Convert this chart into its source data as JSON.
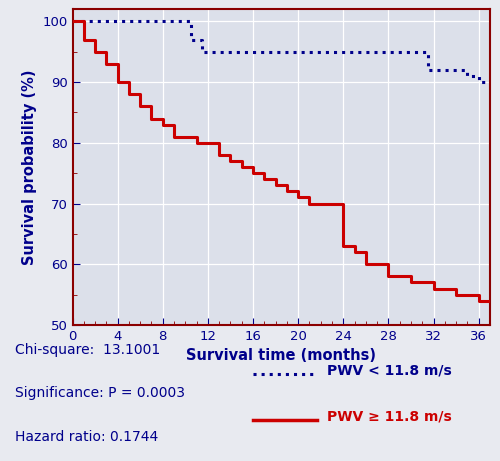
{
  "xlabel": "Survival time (months)",
  "ylabel": "Survival probability (%)",
  "xlim": [
    0,
    37
  ],
  "ylim": [
    50,
    102
  ],
  "xticks": [
    0,
    4,
    8,
    12,
    16,
    20,
    24,
    28,
    32,
    36
  ],
  "yticks": [
    50,
    60,
    70,
    80,
    90,
    100
  ],
  "background_color": "#e8eaf0",
  "plot_bg_color": "#dce0ea",
  "grid_color": "#ffffff",
  "axis_color": "#8b0000",
  "label_color": "#00008b",
  "blue_dotted_times": [
    0,
    10,
    10.5,
    11.5,
    31,
    31.5,
    35,
    36,
    37
  ],
  "blue_dotted_probs": [
    100,
    100,
    97,
    95,
    95,
    92,
    91,
    90,
    90
  ],
  "red_solid_times": [
    0,
    1,
    2,
    3,
    4,
    5,
    6,
    7,
    8,
    9,
    10,
    11,
    12,
    13,
    14,
    15,
    16,
    17,
    18,
    19,
    20,
    21,
    22,
    24,
    25,
    26,
    27,
    28,
    29,
    30,
    31,
    32,
    33,
    34,
    35,
    36,
    37
  ],
  "red_solid_probs": [
    100,
    97,
    95,
    93,
    90,
    88,
    86,
    84,
    83,
    81,
    81,
    80,
    80,
    78,
    77,
    76,
    75,
    74,
    73,
    72,
    71,
    70,
    70,
    63,
    62,
    60,
    60,
    58,
    58,
    57,
    57,
    56,
    56,
    55,
    55,
    54,
    54
  ],
  "blue_color": "#00008b",
  "red_color": "#cc0000",
  "stats_lines": [
    "Chi-square:  13.1001",
    "Significance: P = 0.0003",
    "Hazard ratio: 0.1744"
  ],
  "legend_blue_label": "PWV < 11.8 m/s",
  "legend_red_label": "PWV ≥ 11.8 m/s"
}
